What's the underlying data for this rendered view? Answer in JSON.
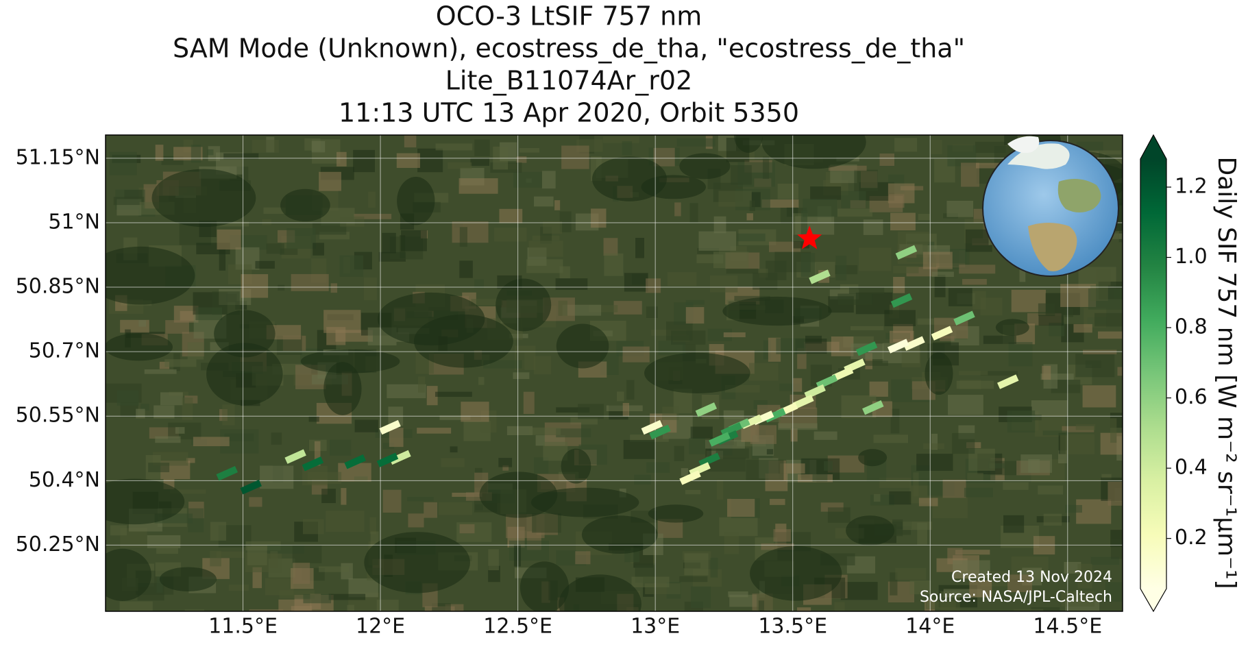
{
  "chart_data": {
    "type": "map",
    "title": [
      "OCO-3 LtSIF 757 nm",
      "SAM Mode (Unknown), ecostress_de_tha, \"ecostress_de_tha\"",
      "Lite_B11074Ar_r02",
      "11:13 UTC 13 Apr 2020, Orbit 5350"
    ],
    "xlim": [
      11.0,
      14.7
    ],
    "ylim": [
      50.096,
      51.204
    ],
    "xticks": [
      {
        "value": 11.5,
        "label": "11.5°E"
      },
      {
        "value": 12,
        "label": "12°E"
      },
      {
        "value": 12.5,
        "label": "12.5°E"
      },
      {
        "value": 13,
        "label": "13°E"
      },
      {
        "value": 13.5,
        "label": "13.5°E"
      },
      {
        "value": 14,
        "label": "14°E"
      },
      {
        "value": 14.5,
        "label": "14.5°E"
      }
    ],
    "yticks": [
      {
        "value": 50.25,
        "label": "50.25°N"
      },
      {
        "value": 50.4,
        "label": "50.4°N"
      },
      {
        "value": 50.55,
        "label": "50.55°N"
      },
      {
        "value": 50.7,
        "label": "50.7°N"
      },
      {
        "value": 50.85,
        "label": "50.85°N"
      },
      {
        "value": 51,
        "label": "51°N"
      },
      {
        "value": 51.15,
        "label": "51.15°N"
      }
    ],
    "grid": true,
    "target": {
      "x": 13.561,
      "y": 50.963,
      "color": "#ff0000"
    },
    "x": [
      13.913,
      13.598,
      13.896,
      14.124,
      14.043,
      13.942,
      13.884,
      13.769,
      13.725,
      13.682,
      13.624,
      13.581,
      13.538,
      13.48,
      13.436,
      13.393,
      13.35,
      13.306,
      13.277,
      13.263,
      13.234,
      13.185,
      13.792,
      14.283,
      13.197,
      13.162,
      13.127,
      13.017,
      12.988,
      12.035,
      12.072,
      12.026,
      11.908,
      11.754,
      11.691,
      11.442,
      11.529
    ],
    "y": [
      50.931,
      50.874,
      50.819,
      50.778,
      50.743,
      50.719,
      50.713,
      50.707,
      50.667,
      50.648,
      50.63,
      50.607,
      50.583,
      50.565,
      50.552,
      50.546,
      50.537,
      50.528,
      50.519,
      50.5,
      50.496,
      50.565,
      50.57,
      50.63,
      50.448,
      50.426,
      50.407,
      50.513,
      50.524,
      50.524,
      50.454,
      50.448,
      50.444,
      50.439,
      50.456,
      50.417,
      50.385
    ],
    "values": [
      0.6,
      0.5,
      0.9,
      0.7,
      0.2,
      0.15,
      0.1,
      0.9,
      0.3,
      0.25,
      0.7,
      0.4,
      0.3,
      0.2,
      0.8,
      0.15,
      0.3,
      0.7,
      0.9,
      1.0,
      0.8,
      0.6,
      0.6,
      0.3,
      1.0,
      0.3,
      0.2,
      0.9,
      0.15,
      0.15,
      0.4,
      1.1,
      1.1,
      1.1,
      0.45,
      1.0,
      1.2
    ],
    "colorbar": {
      "label": "Daily SIF 757 nm [W m⁻² sr⁻¹μm⁻¹]",
      "clim": [
        0.057,
        1.28
      ],
      "ticks": [
        0.2,
        0.4,
        0.6,
        0.8,
        {
          "value": 1,
          "label": "1.0"
        },
        1.2
      ],
      "colormap": [
        "#ffffe5",
        "#f7fcb9",
        "#d9f0a3",
        "#addd8e",
        "#78c679",
        "#41ab5d",
        "#238443",
        "#006837",
        "#004529"
      ]
    },
    "annotations": [
      "Created 13 Nov 2024",
      "Source: NASA/JPL-Caltech"
    ]
  }
}
